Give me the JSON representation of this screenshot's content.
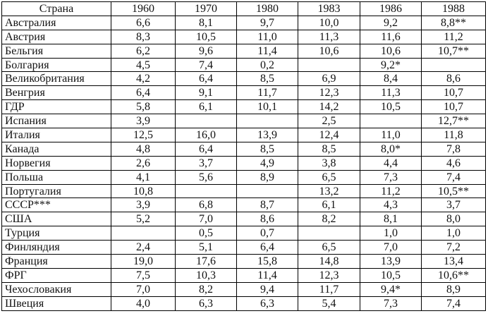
{
  "table": {
    "header": [
      "Страна",
      "1960",
      "1970",
      "1980",
      "1983",
      "1986",
      "1988"
    ],
    "rows": [
      [
        "Австралия",
        "6,6",
        "8,1",
        "9,7",
        "10,0",
        "9,2",
        "8,8**"
      ],
      [
        "Австрия",
        "8,3",
        "10,5",
        "11,0",
        "11,3",
        "11,6",
        "11,2"
      ],
      [
        "Бельгия",
        "6,2",
        "9,6",
        "11,4",
        "10,6",
        "10,6",
        "10,7**"
      ],
      [
        "Болгария",
        "4,5",
        "7,4",
        "0,2",
        null,
        "9,2*",
        null
      ],
      [
        "Великобритания",
        "4,2",
        "6,4",
        "8,5",
        "6,9",
        "8,4",
        "8,6"
      ],
      [
        "Венгрия",
        "6,4",
        "9,1",
        "11,7",
        "12,3",
        "11,3",
        "10,7"
      ],
      [
        "ГДР",
        "5,8",
        "6,1",
        "10,1",
        "14,2",
        "10,5",
        "10,7"
      ],
      [
        "Испания",
        "3,9",
        null,
        null,
        "2,5",
        null,
        "12,7**"
      ],
      [
        "Италия",
        "12,5",
        "16,0",
        "13,9",
        "12,4",
        "11,0",
        "11,8"
      ],
      [
        "Канада",
        "4,8",
        "6,4",
        "8,5",
        "8,5",
        "8,0*",
        "7,8"
      ],
      [
        "Норвегия",
        "2,6",
        "3,7",
        "4,9",
        "3,8",
        "4,4",
        "4,6"
      ],
      [
        "Польша",
        "4,1",
        "5,6",
        "8,9",
        "6,5",
        "7,3",
        "7,4"
      ],
      [
        "Португалия",
        "10,8",
        null,
        null,
        "13,2",
        "11,2",
        "10,5**"
      ],
      [
        "СССР***",
        "3,9",
        "6,8",
        "8,7",
        "6,1",
        "4,3",
        "3,7"
      ],
      [
        "США",
        "5,2",
        "7,0",
        "8,6",
        "8,2",
        "8,1",
        "8,0"
      ],
      [
        "Турция",
        null,
        "0,5",
        "0,7",
        null,
        "1,0",
        "1,0"
      ],
      [
        "Финляндия",
        "2,4",
        "5,1",
        "6,4",
        "6,5",
        "7,0",
        "7,2"
      ],
      [
        "Франция",
        "19,0",
        "17,6",
        "15,8",
        "14,8",
        "13,9",
        "13,4"
      ],
      [
        "ФРГ",
        "7,5",
        "10,3",
        "11,4",
        "12,3",
        "10,5",
        "10,6**"
      ],
      [
        "Чехословакия",
        "7,0",
        "8,2",
        "9,4",
        "11,7",
        "9,4*",
        "8,9"
      ],
      [
        "Швеция",
        "4,0",
        "6,3",
        "6,3",
        "5,4",
        "7,3",
        "7,4"
      ]
    ]
  }
}
